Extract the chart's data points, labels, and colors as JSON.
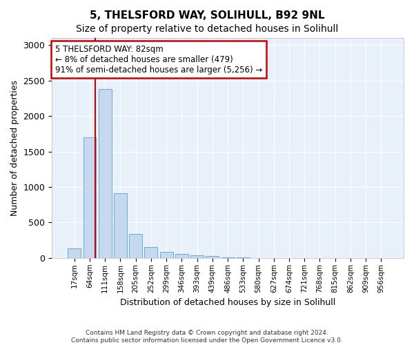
{
  "title1": "5, THELSFORD WAY, SOLIHULL, B92 9NL",
  "title2": "Size of property relative to detached houses in Solihull",
  "xlabel": "Distribution of detached houses by size in Solihull",
  "ylabel": "Number of detached properties",
  "bin_labels": [
    "17sqm",
    "64sqm",
    "111sqm",
    "158sqm",
    "205sqm",
    "252sqm",
    "299sqm",
    "346sqm",
    "393sqm",
    "439sqm",
    "486sqm",
    "533sqm",
    "580sqm",
    "627sqm",
    "674sqm",
    "721sqm",
    "768sqm",
    "815sqm",
    "862sqm",
    "909sqm",
    "956sqm"
  ],
  "bar_values": [
    140,
    1700,
    2380,
    910,
    340,
    155,
    90,
    60,
    40,
    25,
    10,
    5,
    3,
    2,
    1,
    0,
    0,
    0,
    0,
    0,
    0
  ],
  "bar_color": "#c5d8f0",
  "bar_edge_color": "#6aaad4",
  "vline_x": 1.38,
  "vline_color": "#cc0000",
  "annotation_text": "5 THELSFORD WAY: 82sqm\n← 8% of detached houses are smaller (479)\n91% of semi-detached houses are larger (5,256) →",
  "annotation_box_color": "#ffffff",
  "annotation_box_edge": "#cc0000",
  "ylim": [
    0,
    3100
  ],
  "yticks": [
    0,
    500,
    1000,
    1500,
    2000,
    2500,
    3000
  ],
  "footer_line1": "Contains HM Land Registry data © Crown copyright and database right 2024.",
  "footer_line2": "Contains public sector information licensed under the Open Government Licence v3.0.",
  "bg_color": "#ffffff",
  "plot_bg_color": "#e8f0fa",
  "grid_color": "#ffffff",
  "title_fontsize": 11,
  "subtitle_fontsize": 10
}
